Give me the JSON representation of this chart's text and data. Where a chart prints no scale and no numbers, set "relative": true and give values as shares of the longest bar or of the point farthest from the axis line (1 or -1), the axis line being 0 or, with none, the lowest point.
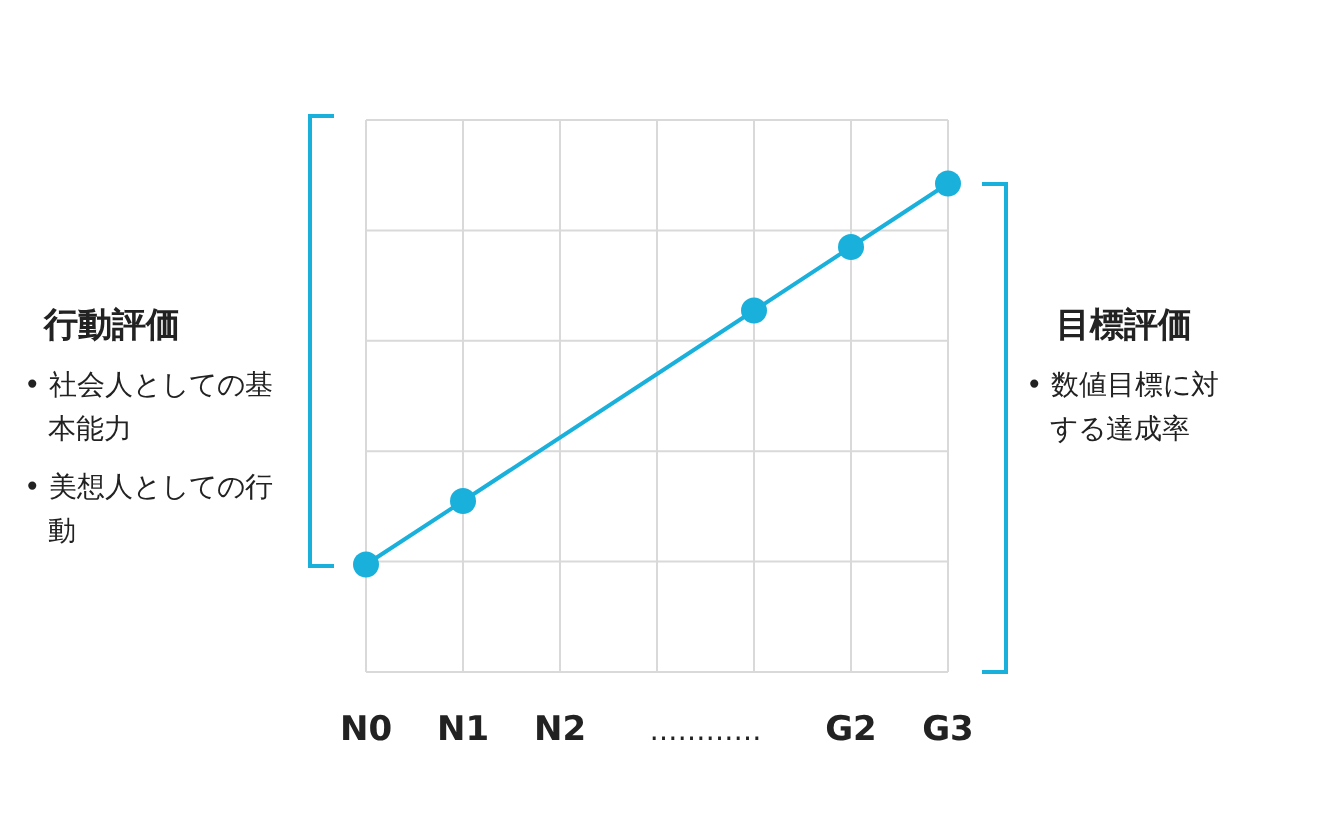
{
  "chart_data": {
    "type": "line",
    "relative": true,
    "grid": true,
    "marker": "circle",
    "line_style": "solid",
    "categories": [
      "N0",
      "N1",
      "N2",
      null,
      null,
      "G2",
      "G3"
    ],
    "series": [
      {
        "color": "#1ab0dc",
        "values": [
          0.22,
          0.35,
          null,
          null,
          0.74,
          0.87,
          1
        ]
      }
    ],
    "annotations": [
      "…………",
      "行動評価",
      "• 社会人としての基本能力",
      "• 美想人としての行動",
      "目標評価",
      "• 数値目標に対する達成率"
    ]
  }
}
